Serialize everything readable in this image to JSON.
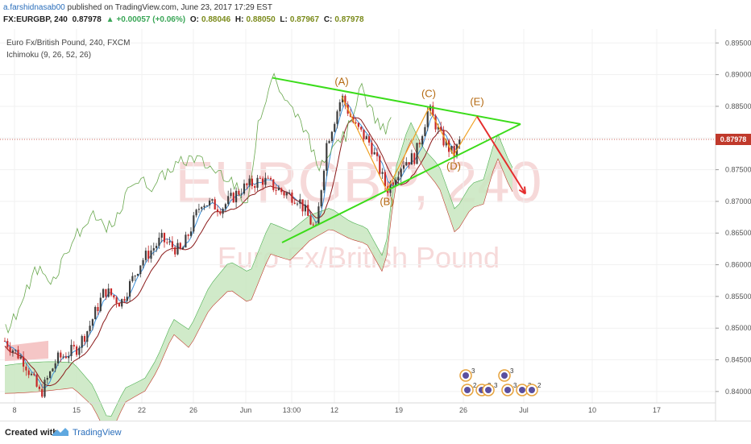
{
  "header": {
    "author": "a.farshidnasab00",
    "published": "published on TradingView.com, June 23, 2017 17:29 EST",
    "symbol": "FX:EURGBP, 240",
    "last": "0.87978",
    "change_arrow": "▲",
    "change": "+0.00057 (+0.06%)",
    "open_label": "O:",
    "open": "0.88046",
    "high_label": "H:",
    "high": "0.88050",
    "low_label": "L:",
    "low": "0.87967",
    "close_label": "C:",
    "close": "0.87978"
  },
  "legend": {
    "instrument": "Euro Fx/British Pound, 240, FXCM",
    "indicator": "Ichimoku (9, 26, 52, 26)"
  },
  "watermark": {
    "line1": "EURGBP, 240",
    "line2": "Euro Fx/British Pound"
  },
  "footer": {
    "created_with": "Created with",
    "brand": "TradingView"
  },
  "colors": {
    "up_candle": "#3d3d3d",
    "down_candle": "#c62828",
    "triangle": "#3bdc1a",
    "wave": "#f0a022",
    "arrow": "#e52d2d",
    "cloud": "#c8e6c0",
    "cloud_red": "#f5c6c6",
    "price_tag": "#c0392b"
  },
  "chart_data": {
    "type": "candlestick",
    "price_axis_ticks": [
      "0.89500",
      "0.89000",
      "0.88500",
      "0.88000",
      "0.87500",
      "0.87000",
      "0.86500",
      "0.86000",
      "0.85500",
      "0.85000",
      "0.84500",
      "0.84000"
    ],
    "ylim": [
      0.8382,
      0.8972
    ],
    "time_axis_ticks": [
      "8",
      "15",
      "22",
      "26",
      "Jun",
      "13:00",
      "12",
      "19",
      "26",
      "Jul",
      "10",
      "17"
    ],
    "last_price_label": "0.87978",
    "wave_labels": [
      "(A)",
      "(B)",
      "(C)",
      "(D)",
      "(E)"
    ],
    "wave_points": [
      {
        "label": "(A)",
        "price": 0.8866
      },
      {
        "label": "(B)",
        "price": 0.8717
      },
      {
        "label": "(C)",
        "price": 0.8847
      },
      {
        "label": "(D)",
        "price": 0.8773
      },
      {
        "label": "(E)",
        "price": 0.8834
      }
    ],
    "triangle_upper": [
      0.8895,
      0.8822
    ],
    "triangle_lower": [
      0.8635,
      0.8822
    ],
    "forecast_target": 0.8712,
    "event_badges": [
      "3",
      "2",
      "2",
      "3",
      "3",
      "2",
      "3",
      "2"
    ]
  }
}
